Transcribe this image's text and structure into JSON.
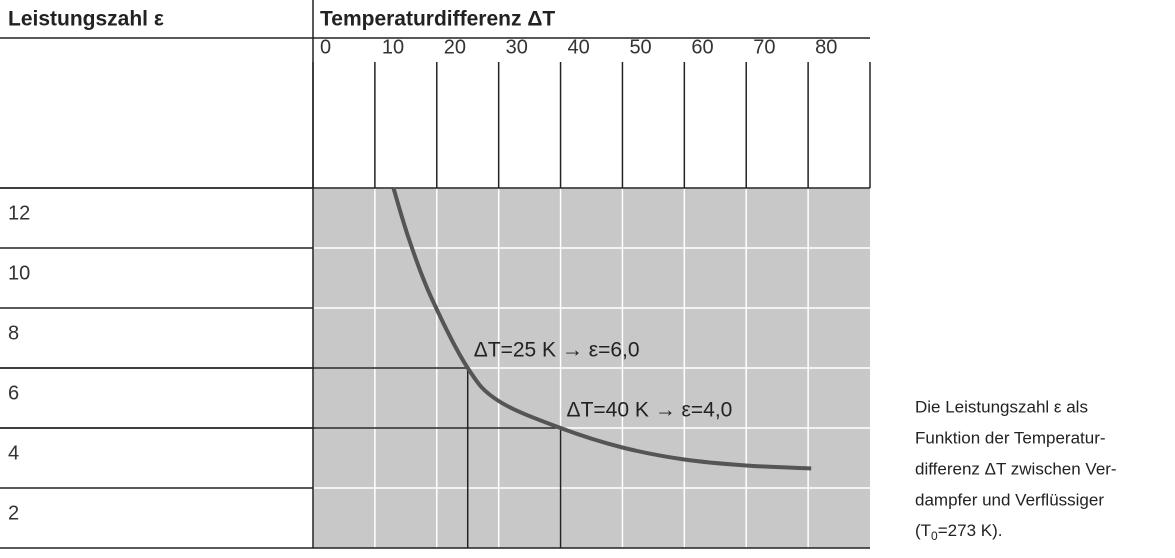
{
  "chart_data": {
    "type": "line",
    "y_label": "Leistungszahl ε",
    "x_label": "Temperaturdifferenz ΔT",
    "x": [
      13,
      15.5,
      19,
      25,
      30,
      40,
      50,
      60,
      70,
      80.5
    ],
    "series": [
      {
        "color": "#555555",
        "values": [
          12,
          10.3,
          8.4,
          6,
          4.9,
          4,
          3.35,
          2.95,
          2.75,
          2.65
        ]
      }
    ],
    "xlim": [
      0,
      90
    ],
    "xticks": [
      0,
      10,
      20,
      30,
      40,
      50,
      60,
      70,
      80
    ],
    "ylim": [
      0,
      12
    ],
    "yticks": [
      2,
      4,
      6,
      8,
      10,
      12
    ],
    "grid": true,
    "markers": [
      {
        "x": 25,
        "y": 6,
        "label": "ΔT=25 K → ε=6,0"
      },
      {
        "x": 40,
        "y": 4,
        "label": "ΔT=40 K → ε=4,0"
      }
    ],
    "caption": [
      "Die Leistungszahl ε als",
      "Funktion der Temperatur-",
      "differenz ΔT zwischen Ver-",
      "dampfer und Verflüssiger"
    ],
    "caption_formula": {
      "before": "(T",
      "sub": "0",
      "after": "=273 K)."
    }
  }
}
